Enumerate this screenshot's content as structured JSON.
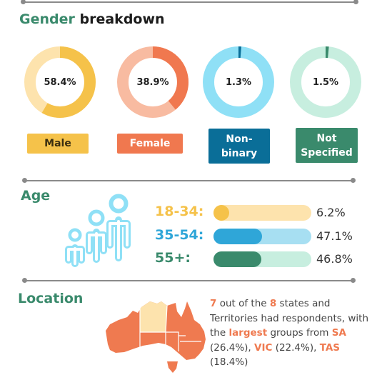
{
  "colors": {
    "male": "#f5c24a",
    "male_light": "#fde3ad",
    "female": "#f0784f",
    "female_light": "#f8bba1",
    "nonbinary": "#0a6e98",
    "nonbinary_light": "#8fe0f6",
    "notspecified": "#3a8a6c",
    "notspecified_light": "#c7eedf",
    "age_young": "#f5c24a",
    "age_young_light": "#fde3ad",
    "age_mid": "#2fa6d8",
    "age_mid_light": "#a7dff2",
    "age_old": "#3a8a6c",
    "age_old_light": "#c7eedf",
    "heading_green": "#3a8a6c",
    "map_orange": "#ef7a50"
  },
  "gender": {
    "title_green": "Gender",
    "title_dark": "breakdown"
  },
  "age": {
    "title": "Age"
  },
  "location": {
    "title": "Location",
    "text": {
      "n1": "7",
      "p1": " out of the ",
      "n2": "8",
      "p2": " states and Territories had respondents, with the ",
      "w_largest": "largest",
      "p3": " groups from ",
      "sa": "SA",
      "sa_pct": " (26.4%), ",
      "vic": "VIC",
      "vic_pct": " (22.4%), ",
      "tas": "TAS",
      "tas_pct": " (18.4%)"
    }
  },
  "chart_data": [
    {
      "type": "pie",
      "title": "Gender breakdown",
      "categories": [
        "Male",
        "Female",
        "Non-binary",
        "Not Specified"
      ],
      "values": [
        58.4,
        38.9,
        1.3,
        1.5
      ],
      "value_labels": [
        "58.4%",
        "38.9%",
        "1.3%",
        "1.5%"
      ],
      "label_lines": [
        [
          "Male"
        ],
        [
          "Female"
        ],
        [
          "Non-",
          "binary"
        ],
        [
          "Not",
          "Specified"
        ]
      ]
    },
    {
      "type": "bar",
      "title": "Age",
      "categories": [
        "18-34:",
        "35-54:",
        "55+:"
      ],
      "values": [
        6.2,
        47.1,
        46.8
      ],
      "value_labels": [
        "6.2%",
        "47.1%",
        "46.8%"
      ],
      "ylim": [
        0,
        100
      ]
    }
  ]
}
